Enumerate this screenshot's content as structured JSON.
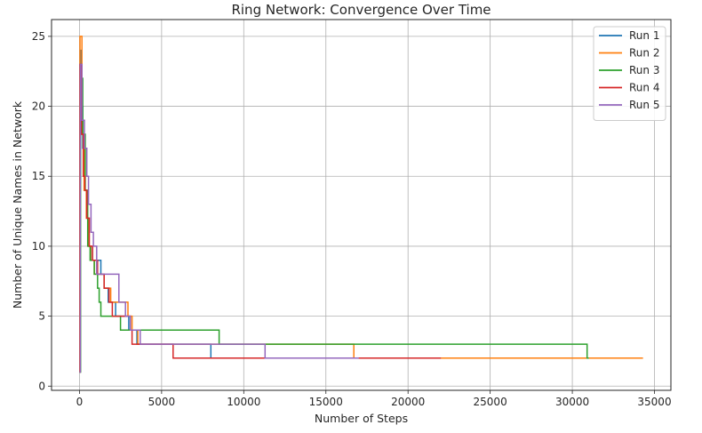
{
  "chart_data": {
    "type": "line",
    "title": "Ring Network: Convergence Over Time",
    "xlabel": "Number of Steps",
    "ylabel": "Number of Unique Names in Network",
    "xlim": [
      -1700,
      36000
    ],
    "ylim": [
      -0.3,
      26.2
    ],
    "xticks": [
      0,
      5000,
      10000,
      15000,
      20000,
      25000,
      30000,
      35000
    ],
    "yticks": [
      0,
      5,
      10,
      15,
      20,
      25
    ],
    "grid": true,
    "legend_position": "top-right",
    "series": [
      {
        "name": "Run 1",
        "color": "#1f77b4",
        "points": [
          [
            0,
            1
          ],
          [
            40,
            24
          ],
          [
            120,
            20
          ],
          [
            200,
            17
          ],
          [
            300,
            14
          ],
          [
            420,
            12
          ],
          [
            560,
            10
          ],
          [
            700,
            9
          ],
          [
            1300,
            8
          ],
          [
            1500,
            7
          ],
          [
            1750,
            6
          ],
          [
            2200,
            5
          ],
          [
            3000,
            4
          ],
          [
            3500,
            3
          ],
          [
            8000,
            2
          ],
          [
            20000,
            2
          ]
        ]
      },
      {
        "name": "Run 2",
        "color": "#ff7f0e",
        "points": [
          [
            0,
            1
          ],
          [
            30,
            25
          ],
          [
            150,
            18
          ],
          [
            280,
            14
          ],
          [
            420,
            12
          ],
          [
            560,
            10
          ],
          [
            680,
            9
          ],
          [
            900,
            8
          ],
          [
            1500,
            7
          ],
          [
            1900,
            6
          ],
          [
            2950,
            5
          ],
          [
            3200,
            4
          ],
          [
            3550,
            3
          ],
          [
            7900,
            3
          ],
          [
            8050,
            3
          ],
          [
            16700,
            2
          ],
          [
            34300,
            2
          ]
        ]
      },
      {
        "name": "Run 3",
        "color": "#2ca02c",
        "points": [
          [
            0,
            1
          ],
          [
            70,
            22
          ],
          [
            200,
            18
          ],
          [
            350,
            14
          ],
          [
            500,
            10
          ],
          [
            650,
            9
          ],
          [
            900,
            8
          ],
          [
            1100,
            7
          ],
          [
            1200,
            6
          ],
          [
            1300,
            5
          ],
          [
            2500,
            4
          ],
          [
            3300,
            4
          ],
          [
            6500,
            4
          ],
          [
            8500,
            3
          ],
          [
            30900,
            2
          ],
          [
            31000,
            2
          ]
        ]
      },
      {
        "name": "Run 4",
        "color": "#d62728",
        "points": [
          [
            0,
            1
          ],
          [
            30,
            23
          ],
          [
            120,
            18
          ],
          [
            230,
            15
          ],
          [
            330,
            14
          ],
          [
            450,
            12
          ],
          [
            600,
            10
          ],
          [
            800,
            9
          ],
          [
            1100,
            8
          ],
          [
            1500,
            7
          ],
          [
            1800,
            6
          ],
          [
            2000,
            5
          ],
          [
            2700,
            5
          ],
          [
            3100,
            4
          ],
          [
            3200,
            3
          ],
          [
            5700,
            2
          ],
          [
            22000,
            2
          ]
        ]
      },
      {
        "name": "Run 5",
        "color": "#9467bd",
        "points": [
          [
            0,
            1
          ],
          [
            50,
            23
          ],
          [
            150,
            19
          ],
          [
            300,
            17
          ],
          [
            450,
            15
          ],
          [
            550,
            13
          ],
          [
            700,
            11
          ],
          [
            850,
            10
          ],
          [
            1050,
            8
          ],
          [
            1500,
            8
          ],
          [
            2400,
            6
          ],
          [
            2800,
            5
          ],
          [
            3100,
            4
          ],
          [
            3700,
            3
          ],
          [
            11300,
            2
          ],
          [
            17000,
            2
          ]
        ]
      }
    ]
  }
}
